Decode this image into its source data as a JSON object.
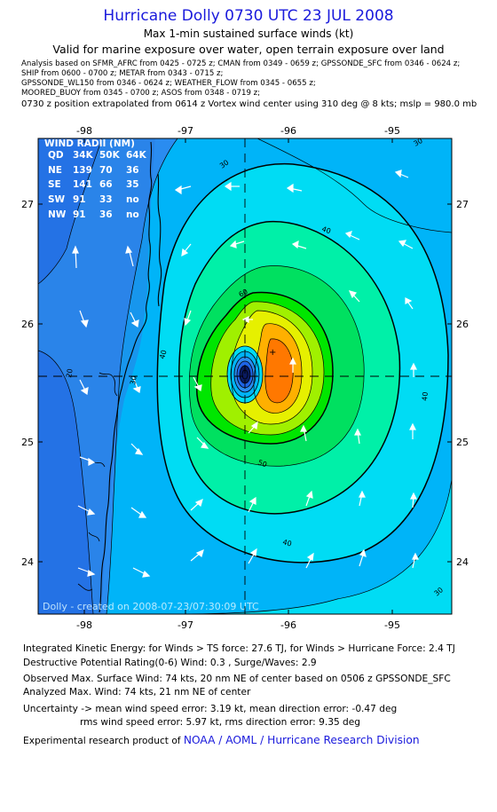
{
  "header": {
    "title": "Hurricane Dolly 0730 UTC 23 JUL 2008",
    "subtitle1": "Max 1-min sustained surface winds (kt)",
    "subtitle2": "Valid for marine exposure over water, open terrain exposure over land",
    "analysis_lines": [
      "Analysis based on   SFMR_AFRC from 0425 - 0725 z;  CMAN from 0349 - 0659 z;  GPSSONDE_SFC from 0346 - 0624 z;",
      "SHIP from 0600 - 0700 z;   METAR from 0343 - 0715 z;",
      "GPSSONDE_WL150 from 0346 - 0624 z;  WEATHER_FLOW from 0345 - 0655 z;",
      "MOORED_BUOY from 0345 - 0700 z;  ASOS from 0348 - 0719 z;"
    ],
    "wind_center_line": "0730 z position extrapolated from 0614 z Vortex wind center using 310 deg @ 8 kts; mslp = 980.0 mb"
  },
  "map": {
    "lon_labels": [
      "-98",
      "-97",
      "-96",
      "-95"
    ],
    "lat_labels": [
      "27",
      "26",
      "25",
      "24"
    ],
    "contour_labels": [
      "20",
      "30",
      "30",
      "30",
      "30",
      "40",
      "40",
      "40",
      "40",
      "50",
      "60"
    ],
    "credit": "Dolly - created on 2008-07-23/07:30:09 UTC",
    "wind_radii": {
      "title": "WIND RADII (NM)",
      "header": [
        "QD",
        "34K",
        "50K",
        "64K"
      ],
      "rows": [
        [
          "NE",
          "139",
          "70",
          "36"
        ],
        [
          "SE",
          "141",
          "66",
          "35"
        ],
        [
          "SW",
          "91",
          "33",
          "no"
        ],
        [
          "NW",
          "91",
          "36",
          "no"
        ]
      ]
    },
    "colors": {
      "kt_lt20": "#1e64e6",
      "kt_20": "#2a8cf0",
      "kt_30": "#00b4f8",
      "kt_40": "#00dcf4",
      "kt_50": "#00f0a8",
      "kt_55": "#00e060",
      "kt_60": "#00e600",
      "kt_64": "#a0f000",
      "kt_68": "#e6f000",
      "kt_72": "#ffb000",
      "kt_74": "#ff7800",
      "eye": "#0a1a60",
      "land": "#2a7ee4"
    }
  },
  "footer": {
    "ike": "Integrated Kinetic Energy:  for Winds > TS force: 27.6 TJ,  for Winds > Hurricane Force: 2.4 TJ",
    "dpr": "Destructive Potential Rating(0-6)   Wind: 0.3 , Surge/Waves: 2.9",
    "observed": "Observed Max. Surface Wind: 74 kts, 20 nm NE of center based on 0506 z GPSSONDE_SFC",
    "analyzed": "Analyzed Max. Wind: 74 kts, 21 nm NE of center",
    "uncertainty1": "Uncertainty -> mean wind speed error: 3.19 kt,   mean direction error:  -0.47 deg",
    "uncertainty2": "rms wind speed error: 5.97 kt,   rms direction error: 9.35 deg",
    "product_prefix": "Experimental research product of",
    "product_org": "NOAA / AOML / Hurricane Research Division"
  }
}
